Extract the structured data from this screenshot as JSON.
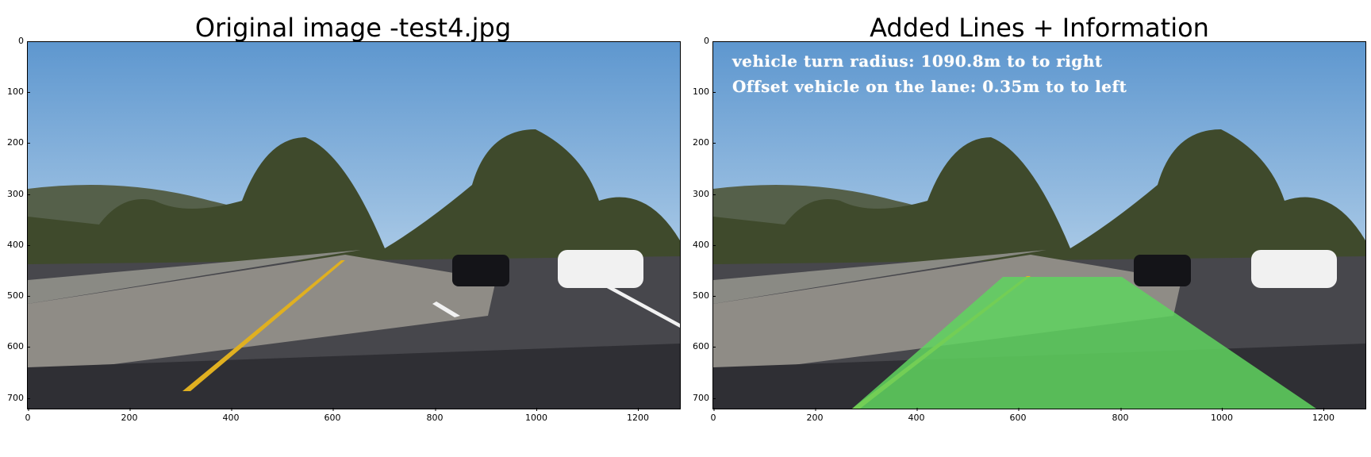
{
  "left_panel": {
    "title": "Original image -test4.jpg"
  },
  "right_panel": {
    "title": "Added Lines + Information",
    "overlay_line_1": "vehicle turn radius: 1090.8m to to right",
    "overlay_line_2": "Offset vehicle on the lane: 0.35m to to left"
  },
  "axes": {
    "y_ticks": [
      "0",
      "100",
      "200",
      "300",
      "400",
      "500",
      "600",
      "700"
    ],
    "x_ticks": [
      "0",
      "200",
      "400",
      "600",
      "800",
      "1000",
      "1200"
    ]
  },
  "colors": {
    "sky": "#6fa3d4",
    "road": "#3d3d42",
    "lane_fill": "#5fd35f",
    "lane_line_yellow": "#e0b020"
  }
}
